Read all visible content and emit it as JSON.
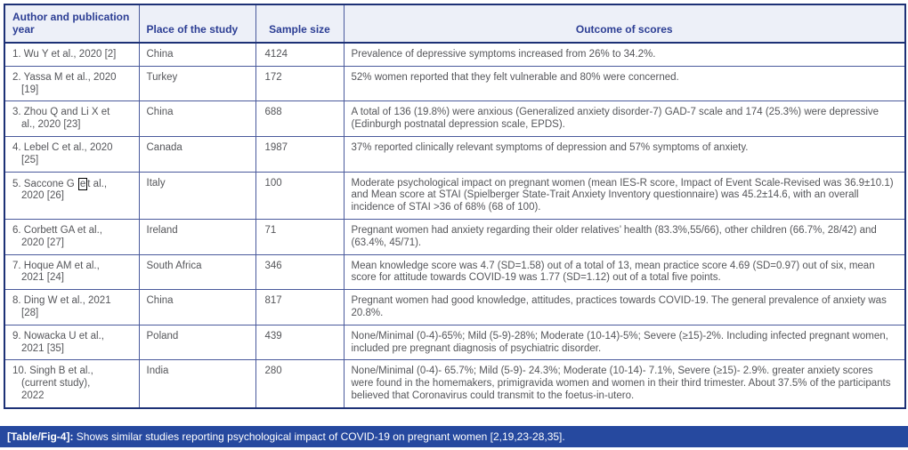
{
  "table": {
    "headers": [
      "Author and publication year",
      "Place of the study",
      "Sample size",
      "Outcome of scores"
    ],
    "rows": [
      {
        "author": "1. Wu Y et al., 2020 [2]",
        "place": "China",
        "sample": "4124",
        "outcome": "Prevalence of depressive symptoms increased from 26% to 34.2%."
      },
      {
        "author": "2. Yassa M et al., 2020\n[19]",
        "place": "Turkey",
        "sample": "172",
        "outcome": "52% women reported that they felt vulnerable and 80% were concerned."
      },
      {
        "author": "3. Zhou Q and Li X et\nal., 2020 [23]",
        "place": "China",
        "sample": "688",
        "outcome": "A total of 136 (19.8%) were anxious (Generalized anxiety disorder-7) GAD-7 scale and 174 (25.3%) were depressive (Edinburgh postnatal depression scale, EPDS)."
      },
      {
        "author": "4. Lebel C et al., 2020\n[25]",
        "place": "Canada",
        "sample": "1987",
        "outcome": "37% reported clinically relevant symptoms of depression and 57% symptoms of anxiety."
      },
      {
        "author_segments": [
          {
            "t": "5. Saccone G "
          },
          {
            "t": "e",
            "boxed": true
          },
          {
            "t": "t al.,\n2020 [26]"
          }
        ],
        "place": "Italy",
        "sample": "100",
        "outcome": "Moderate psychological impact on pregnant women (mean IES-R score, Impact of Event Scale-Revised was 36.9±10.1) and Mean score at STAI (Spielberger State-Trait Anxiety Inventory questionnaire) was 45.2±14.6, with an overall incidence of STAI >36 of 68% (68 of 100)."
      },
      {
        "author": "6. Corbett GA et al.,\n2020 [27]",
        "place": "Ireland",
        "sample": "71",
        "outcome": "Pregnant women had anxiety regarding their older relatives’ health (83.3%,55/66), other children (66.7%, 28/42) and (63.4%, 45/71)."
      },
      {
        "author": "7. Hoque AM et al.,\n2021 [24]",
        "place": "South Africa",
        "sample": "346",
        "outcome": "Mean knowledge score was 4.7 (SD=1.58) out of a total of 13, mean practice score 4.69 (SD=0.97) out of six, mean score for attitude towards COVID-19 was 1.77 (SD=1.12) out of a total five points."
      },
      {
        "author": "8. Ding W et al., 2021\n[28]",
        "place": "China",
        "sample": "817",
        "outcome": "Pregnant women had good knowledge, attitudes, practices towards COVID-19. The general prevalence of anxiety was 20.8%."
      },
      {
        "author": "9. Nowacka U et al.,\n2021 [35]",
        "place": "Poland",
        "sample": "439",
        "outcome": "None/Minimal (0-4)-65%; Mild (5-9)-28%; Moderate (10-14)-5%; Severe (≥15)-2%. Including infected pregnant women, included pre pregnant diagnosis of psychiatric disorder."
      },
      {
        "author": "10. Singh B et al.,\n(current study),\n2022",
        "place": "India",
        "sample": "280",
        "outcome": "None/Minimal (0-4)- 65.7%; Mild (5-9)- 24.3%; Moderate (10-14)- 7.1%, Severe (≥15)- 2.9%. greater anxiety scores were found in the homemakers, primigravida women and women in their third trimester. About 37.5% of the participants believed that Coronavirus could transmit to the foetus-in-utero."
      }
    ]
  },
  "caption": {
    "label": "[Table/Fig-4]:",
    "text": " Shows similar studies reporting psychological impact of COVID-19 on pregnant women [2,19,23-28,35]."
  },
  "colors": {
    "header_text": "#2c3e94",
    "header_bg": "#edf0f8",
    "body_text": "#55565a",
    "grid_border": "#4a5a9c",
    "outer_border": "#1d3176",
    "caption_bg": "#26499f",
    "caption_text": "#ffffff"
  }
}
